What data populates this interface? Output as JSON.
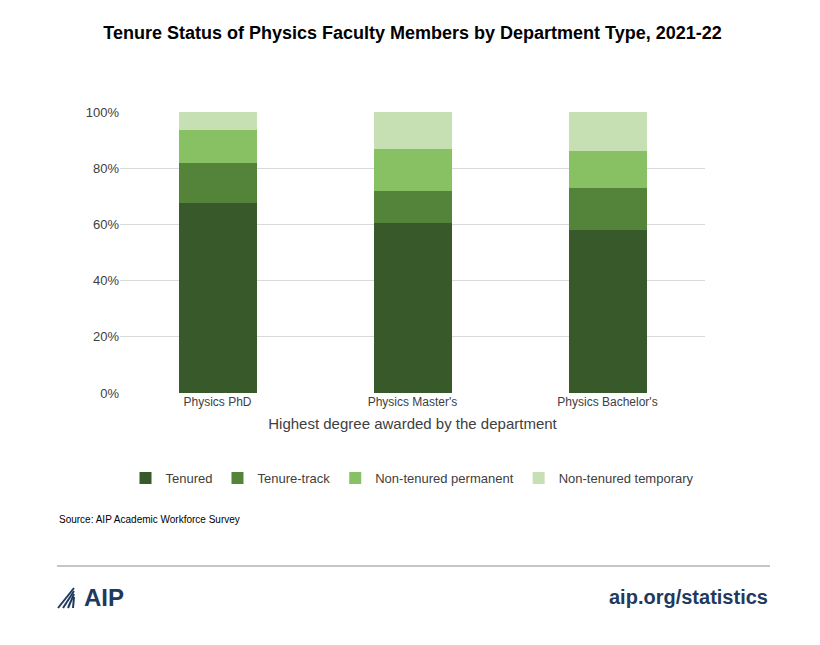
{
  "chart_data": {
    "type": "bar",
    "title": "Tenure Status of Physics Faculty Members by Department Type, 2021-22",
    "x_label": "Highest degree awarded by the department",
    "categories": [
      "Physics PhD",
      "Physics Master's",
      "Physics Bachelor's"
    ],
    "series": [
      {
        "name": "Tenured",
        "color": "#385a2b",
        "values": [
          67.5,
          60.5,
          58
        ]
      },
      {
        "name": "Tenure-track",
        "color": "#53843a",
        "values": [
          14.5,
          11.5,
          15
        ]
      },
      {
        "name": "Non-tenured permanent",
        "color": "#88c164",
        "values": [
          11.5,
          15,
          13
        ]
      },
      {
        "name": "Non-tenured temporary",
        "color": "#c6e0b4",
        "values": [
          6.5,
          13,
          14
        ]
      }
    ],
    "stacked": true,
    "ylim": [
      0,
      100
    ],
    "yticks": [
      {
        "value": 0,
        "label": "0%"
      },
      {
        "value": 20,
        "label": "20%"
      },
      {
        "value": 40,
        "label": "40%"
      },
      {
        "value": 60,
        "label": "60%"
      },
      {
        "value": 80,
        "label": "80%"
      },
      {
        "value": 100,
        "label": "100%"
      }
    ],
    "grid": true,
    "legend": "bottom",
    "source": "Source: AIP Academic Workforce Survey",
    "logo": "AIP",
    "url": "aip.org/statistics"
  }
}
